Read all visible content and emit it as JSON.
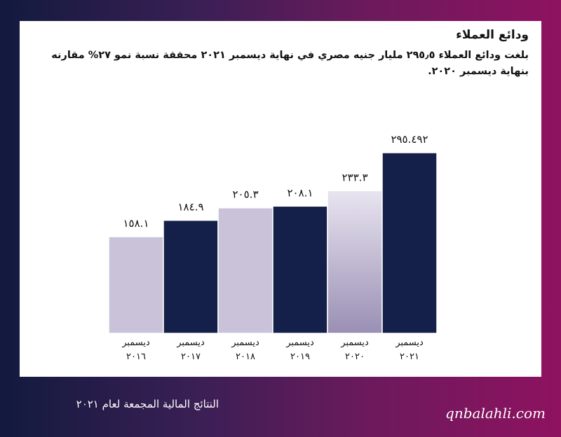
{
  "slide": {
    "title": "ودائع العملاء",
    "subtitle": "بلغت ودائع العملاء ٢٩٥٫٥ مليار جنيه مصري في نهاية ديسمبر ٢٠٢١ محققة نسبة نمو ٢٧% مقارنه بنهاية ديسمبر ٢٠٢٠.",
    "footer_title": "النتائج المالية المجمعة لعام ٢٠٢١",
    "footer_site": "qnbalahli.com"
  },
  "colors": {
    "light_bar": "#c9c2d8",
    "dark_bar": "#15204a",
    "highlight_bar_top": "#e8e4f0",
    "highlight_bar_bottom": "#9a8fb4"
  },
  "chart_data": {
    "type": "bar",
    "categories": [
      [
        "ديسمبر",
        "٢٠١٦"
      ],
      [
        "ديسمبر",
        "٢٠١٧"
      ],
      [
        "ديسمبر",
        "٢٠١٨"
      ],
      [
        "ديسمبر",
        "٢٠١٩"
      ],
      [
        "ديسمبر",
        "٢٠٢٠"
      ],
      [
        "ديسمبر",
        "٢٠٢١"
      ]
    ],
    "values": [
      158.1,
      184.9,
      205.3,
      208.1,
      233.3,
      295.492
    ],
    "value_labels": [
      "١٥٨.١",
      "١٨٤.٩",
      "٢٠٥.٣",
      "٢٠٨.١",
      "٢٣٣.٣",
      "٢٩٥.٤٩٢"
    ],
    "bar_styles": [
      "light",
      "dark",
      "light",
      "dark",
      "highlight",
      "dark"
    ],
    "title": "ودائع العملاء",
    "xlabel": "",
    "ylabel": "",
    "ylim": [
      0,
      300
    ],
    "grid": false,
    "legend": "none"
  }
}
